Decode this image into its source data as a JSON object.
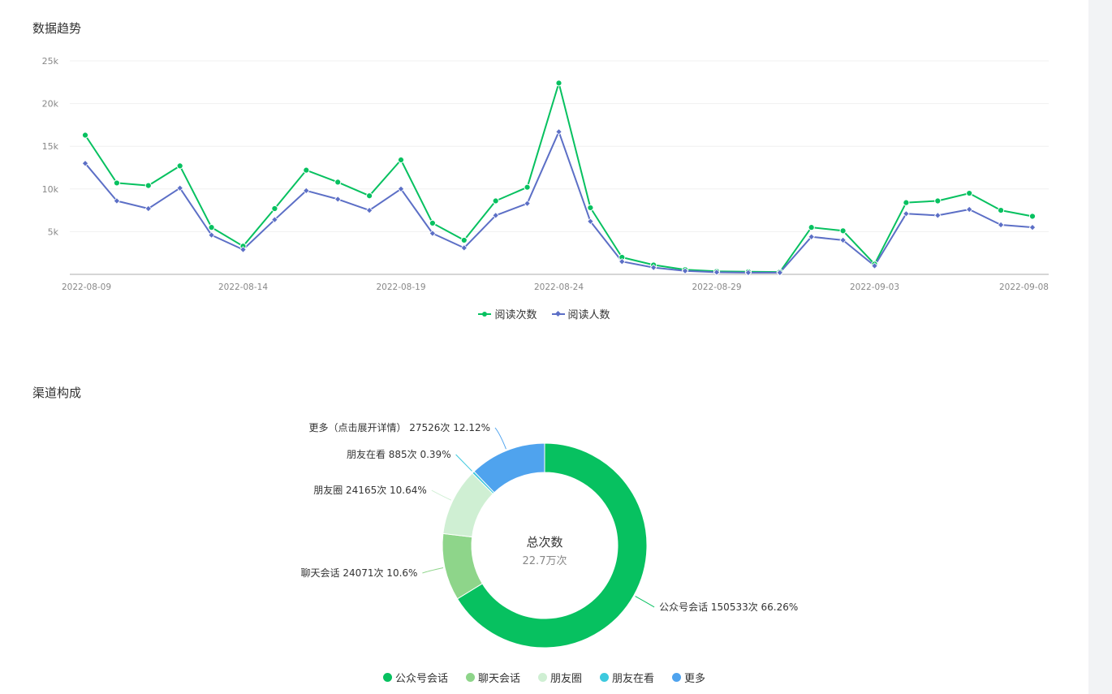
{
  "trend_section": {
    "title": "数据趋势"
  },
  "channel_section": {
    "title": "渠道构成"
  },
  "chart_data": [
    {
      "type": "line",
      "title": "数据趋势",
      "y_ticks": [
        "5k",
        "10k",
        "15k",
        "20k",
        "25k"
      ],
      "y_tick_values": [
        5000,
        10000,
        15000,
        20000,
        25000
      ],
      "ylim": [
        0,
        25000
      ],
      "grid": true,
      "legend_position": "bottom",
      "x": [
        "2022-08-09",
        "2022-08-10",
        "2022-08-11",
        "2022-08-12",
        "2022-08-13",
        "2022-08-14",
        "2022-08-15",
        "2022-08-16",
        "2022-08-17",
        "2022-08-18",
        "2022-08-19",
        "2022-08-20",
        "2022-08-21",
        "2022-08-22",
        "2022-08-23",
        "2022-08-24",
        "2022-08-25",
        "2022-08-26",
        "2022-08-27",
        "2022-08-28",
        "2022-08-29",
        "2022-08-30",
        "2022-08-31",
        "2022-09-01",
        "2022-09-02",
        "2022-09-03",
        "2022-09-04",
        "2022-09-05",
        "2022-09-06",
        "2022-09-07",
        "2022-09-08"
      ],
      "x_tick_labels": [
        "2022-08-09",
        "2022-08-14",
        "2022-08-19",
        "2022-08-24",
        "2022-08-29",
        "2022-09-03",
        "2022-09-08"
      ],
      "series": [
        {
          "name": "阅读次数",
          "color": "#07c160",
          "marker": "circle",
          "values": [
            16300,
            10700,
            10400,
            12700,
            5500,
            3300,
            7700,
            12200,
            10800,
            9200,
            13400,
            6000,
            4000,
            8600,
            10200,
            22400,
            7800,
            2000,
            1100,
            550,
            350,
            300,
            280,
            5500,
            5100,
            1200,
            8400,
            8600,
            9500,
            7500,
            6800
          ]
        },
        {
          "name": "阅读人数",
          "color": "#5c6fc6",
          "marker": "diamond",
          "values": [
            13000,
            8600,
            7700,
            10100,
            4600,
            2900,
            6400,
            9800,
            8800,
            7500,
            10000,
            4800,
            3100,
            6900,
            8300,
            16700,
            6200,
            1500,
            800,
            400,
            250,
            200,
            200,
            4400,
            4000,
            1000,
            7100,
            6900,
            7600,
            5800,
            5500
          ]
        }
      ]
    },
    {
      "type": "pie",
      "title": "渠道构成",
      "center_label": "总次数",
      "center_value": "22.7万次",
      "legend_position": "bottom",
      "slices": [
        {
          "name": "公众号会话",
          "value": 150533,
          "label": "公众号会话 150533次 66.26%",
          "color": "#07c160"
        },
        {
          "name": "聊天会话",
          "value": 24071,
          "label": "聊天会话 24071次 10.6%",
          "color": "#8ed58a"
        },
        {
          "name": "朋友圈",
          "value": 24165,
          "label": "朋友圈 24165次 10.64%",
          "color": "#cfefd3"
        },
        {
          "name": "朋友在看",
          "value": 885,
          "label": "朋友在看 885次 0.39%",
          "color": "#3dc9de"
        },
        {
          "name": "更多",
          "value": 27526,
          "label": "更多（点击展开详情） 27526次 12.12%",
          "color": "#4fa3ee"
        }
      ]
    }
  ]
}
